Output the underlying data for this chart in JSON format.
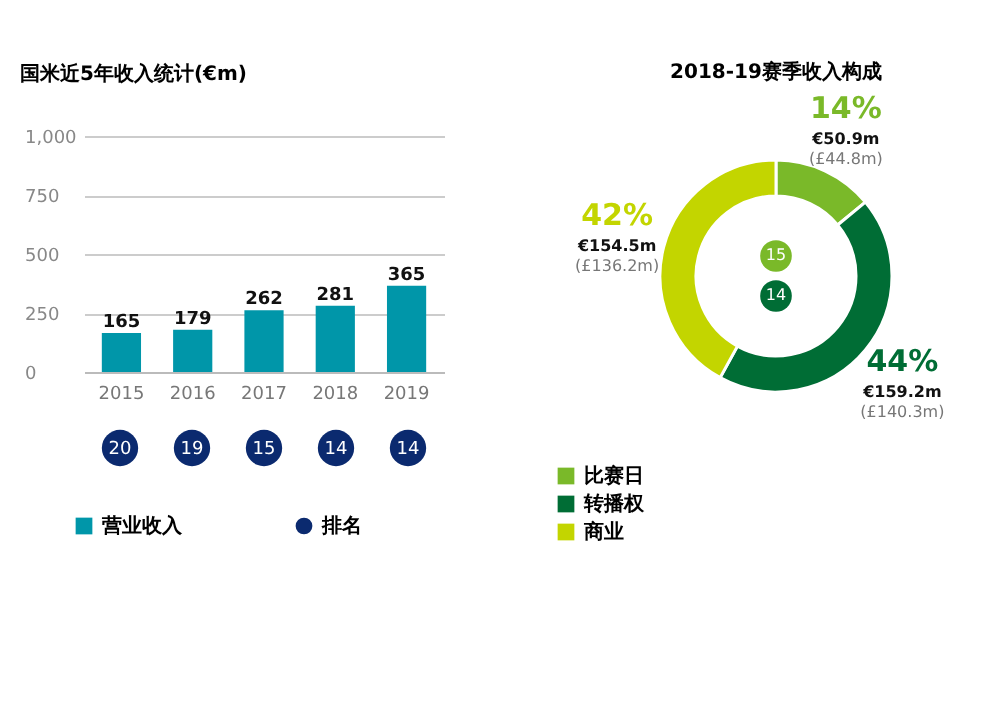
{
  "chart_data": [
    {
      "type": "bar",
      "title": "国米近5年收入统计(€m)",
      "categories": [
        "2015",
        "2016",
        "2017",
        "2018",
        "2019"
      ],
      "series": [
        {
          "name": "营业收入",
          "type": "bar",
          "color": "#0096a9",
          "values": [
            165,
            179,
            262,
            281,
            365
          ]
        }
      ],
      "ylim": [
        0,
        1000
      ],
      "yticks": [
        0,
        250,
        500,
        750,
        {
          "value": 1000,
          "label": "1,000"
        }
      ],
      "grid": "y",
      "data_labels": true,
      "legend": "bottom"
    },
    {
      "type": "other",
      "categories": [
        null,
        null,
        null,
        null,
        null
      ],
      "series": [
        {
          "name": "排名",
          "color": "#0b2a6f",
          "values": [
            20,
            19,
            15,
            14,
            14
          ]
        }
      ],
      "data_labels": true,
      "legend": "bottom"
    },
    {
      "type": "donut",
      "title": "2018-19赛季收入构成",
      "categories": [
        "比赛日",
        "转播权",
        "商业"
      ],
      "values": [
        14,
        44,
        42
      ],
      "colors": [
        "#7ab929",
        "#006d35",
        "#c3d500"
      ],
      "value_labels": [
        "14%",
        "44%",
        "42%"
      ],
      "annotations": [
        {
          "text": "€50.9m",
          "x": "比赛日"
        },
        {
          "text": "(£44.8m)",
          "x": "比赛日"
        },
        {
          "text": "€159.2m",
          "x": "转播权"
        },
        {
          "text": "(£140.3m)",
          "x": "转播权"
        },
        {
          "text": "€154.5m",
          "x": "商业"
        },
        {
          "text": "(£136.2m)",
          "x": "商业"
        },
        "15",
        "14"
      ],
      "legend": "bottom left"
    }
  ]
}
